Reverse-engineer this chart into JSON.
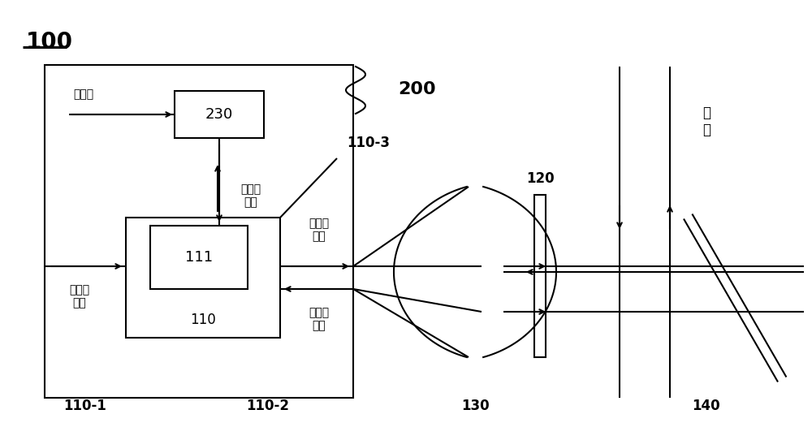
{
  "bg_color": "#ffffff",
  "line_color": "#000000",
  "title": "100",
  "label_200": "200",
  "label_110_1": "110-1",
  "label_110_2": "110-2",
  "label_110_3": "110-3",
  "label_110": "110",
  "label_111": "111",
  "label_230": "230",
  "label_120": "120",
  "label_130": "130",
  "label_140": "140",
  "text_ben_zhen_guang": "本振光",
  "text_p1": "第一偏\n振光",
  "text_p2": "第二偏\n振光",
  "text_p3": "第三偏\n振光",
  "text_hui_bo": "回\n波",
  "figsize": [
    10.0,
    5.42
  ]
}
